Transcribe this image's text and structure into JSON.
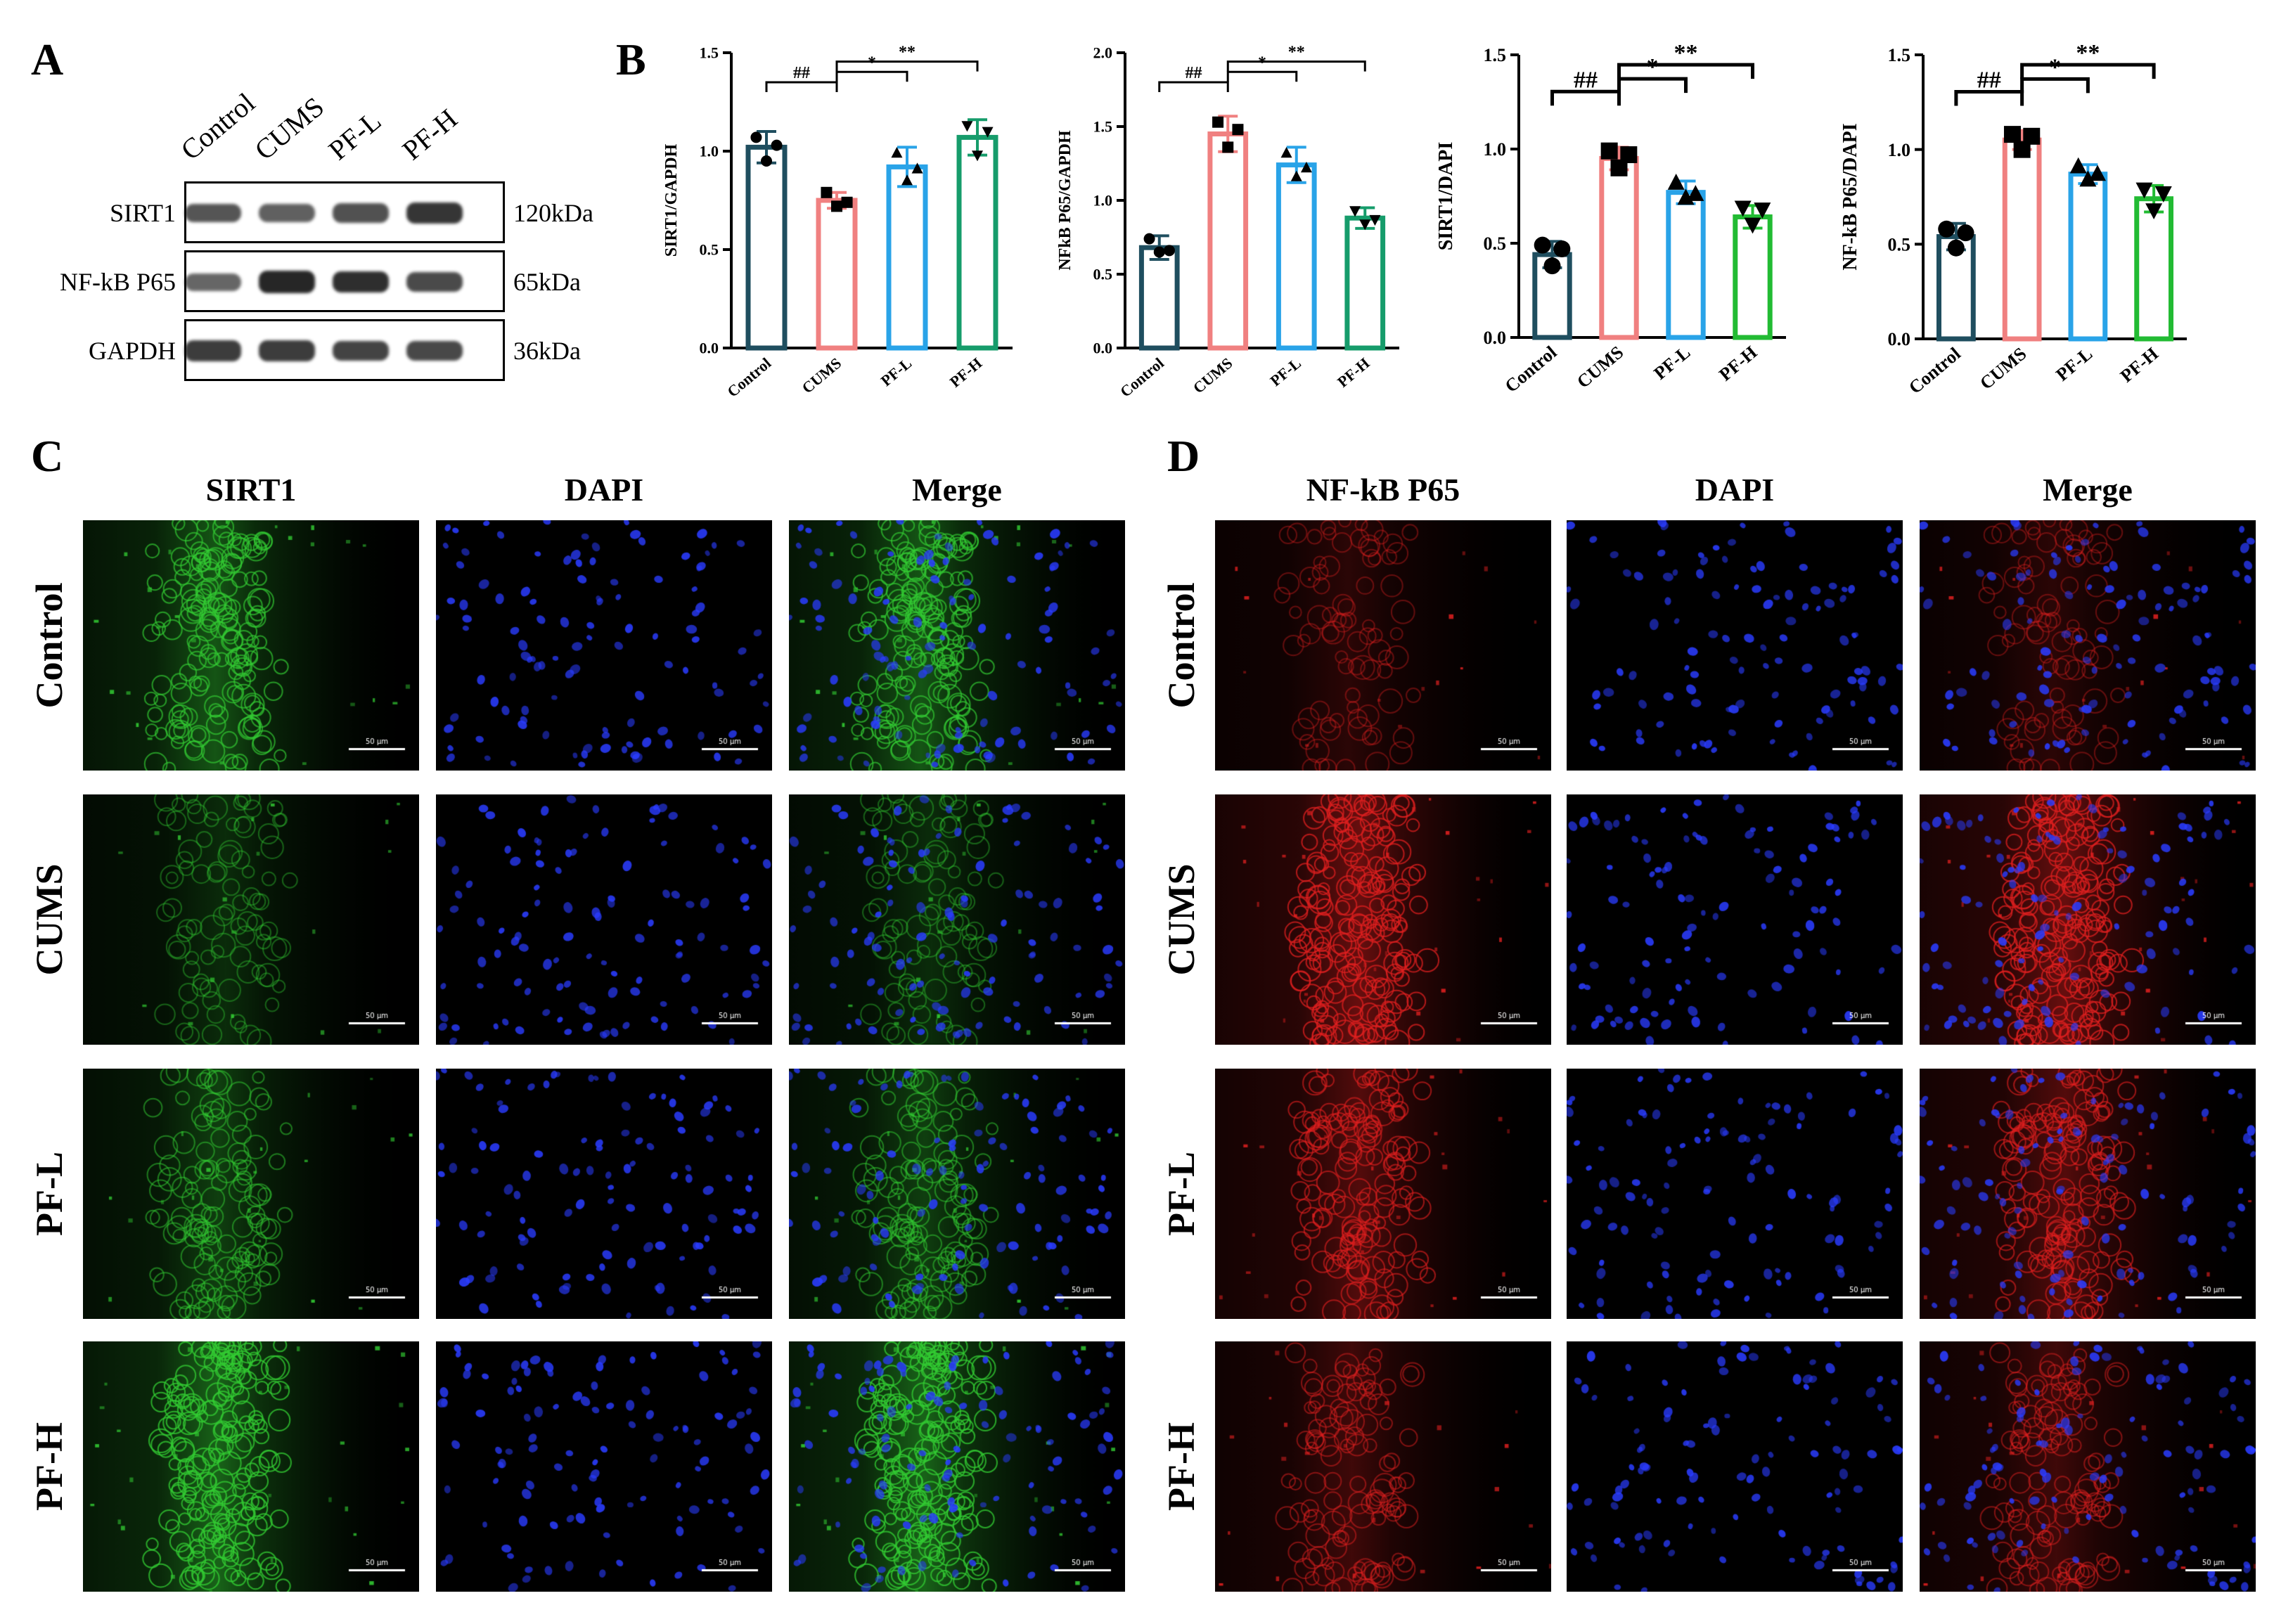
{
  "panel_a": {
    "letter": "A",
    "lanes": [
      "Control",
      "CUMS",
      "PF-L",
      "PF-H"
    ],
    "rows": [
      {
        "label": "SIRT1",
        "size": "120kDa",
        "intensity": [
          0.62,
          0.55,
          0.65,
          0.85
        ]
      },
      {
        "label": "NF-kB P65",
        "size": "65kDa",
        "intensity": [
          0.5,
          0.95,
          0.9,
          0.7
        ]
      },
      {
        "label": "GAPDH",
        "size": "36kDa",
        "intensity": [
          0.8,
          0.8,
          0.75,
          0.72
        ]
      }
    ]
  },
  "panel_b": {
    "letter": "B"
  },
  "chart_data": [
    {
      "type": "bar",
      "categories": [
        "Control",
        "CUMS",
        "PF-L",
        "PF-H"
      ],
      "ylabel": "SIRT1/GAPDH",
      "ylim": [
        0,
        1.5
      ],
      "yticks": [
        "0.0",
        "0.5",
        "1.0",
        "1.5"
      ],
      "values": [
        1.02,
        0.75,
        0.92,
        1.07
      ],
      "errors": [
        0.08,
        0.04,
        0.1,
        0.09
      ],
      "points": [
        [
          1.07,
          0.95,
          1.03
        ],
        [
          0.79,
          0.72,
          0.74
        ],
        [
          0.99,
          0.85,
          0.91
        ],
        [
          1.13,
          0.98,
          1.1
        ]
      ],
      "colors": [
        "#1f4e5f",
        "#f08080",
        "#29a3e8",
        "#169c6b"
      ],
      "markers": [
        "circle",
        "square",
        "triangle",
        "triangle-down"
      ],
      "significance": [
        {
          "from": 0,
          "to": 1,
          "label": "##"
        },
        {
          "from": 1,
          "to": 2,
          "label": "*"
        },
        {
          "from": 1,
          "to": 3,
          "label": "**"
        }
      ]
    },
    {
      "type": "bar",
      "categories": [
        "Control",
        "CUMS",
        "PF-L",
        "PF-H"
      ],
      "ylabel": "NFkB P65/GAPDH",
      "ylim": [
        0,
        2.0
      ],
      "yticks": [
        "0.0",
        "0.5",
        "1.0",
        "1.5",
        "2.0"
      ],
      "values": [
        0.68,
        1.45,
        1.24,
        0.88
      ],
      "errors": [
        0.08,
        0.12,
        0.12,
        0.07
      ],
      "points": [
        [
          0.74,
          0.65,
          0.66
        ],
        [
          1.53,
          1.36,
          1.48
        ],
        [
          1.32,
          1.16,
          1.22
        ],
        [
          0.93,
          0.84,
          0.87
        ]
      ],
      "colors": [
        "#1f4e5f",
        "#f08080",
        "#29a3e8",
        "#169c6b"
      ],
      "markers": [
        "circle",
        "square",
        "triangle",
        "triangle-down"
      ],
      "significance": [
        {
          "from": 0,
          "to": 1,
          "label": "##"
        },
        {
          "from": 1,
          "to": 2,
          "label": "*"
        },
        {
          "from": 1,
          "to": 3,
          "label": "**"
        }
      ]
    },
    {
      "type": "bar",
      "categories": [
        "Control",
        "CUMS",
        "PF-L",
        "PF-H"
      ],
      "ylabel": "SIRT1/DAPI",
      "ylim": [
        0,
        1.5
      ],
      "yticks": [
        "0.0",
        "0.5",
        "1.0",
        "1.5"
      ],
      "values": [
        0.44,
        0.95,
        0.77,
        0.64
      ],
      "errors": [
        0.07,
        0.06,
        0.06,
        0.06
      ],
      "points": [
        [
          0.49,
          0.38,
          0.47
        ],
        [
          0.99,
          0.9,
          0.97
        ],
        [
          0.82,
          0.74,
          0.76
        ],
        [
          0.69,
          0.6,
          0.68
        ]
      ],
      "colors": [
        "#1f4e5f",
        "#f08080",
        "#29a3e8",
        "#22bb33"
      ],
      "markers": [
        "circle",
        "square",
        "triangle",
        "triangle-down"
      ],
      "significance": [
        {
          "from": 0,
          "to": 1,
          "label": "##"
        },
        {
          "from": 1,
          "to": 2,
          "label": "*"
        },
        {
          "from": 1,
          "to": 3,
          "label": "**"
        }
      ]
    },
    {
      "type": "bar",
      "categories": [
        "Control",
        "CUMS",
        "PF-L",
        "PF-H"
      ],
      "ylabel": "NF-kB P65/DAPI",
      "ylim": [
        0,
        1.5
      ],
      "yticks": [
        "0.0",
        "0.5",
        "1.0",
        "1.5"
      ],
      "values": [
        0.54,
        1.05,
        0.87,
        0.74
      ],
      "errors": [
        0.07,
        0.05,
        0.05,
        0.07
      ],
      "points": [
        [
          0.58,
          0.48,
          0.56
        ],
        [
          1.08,
          1.0,
          1.07
        ],
        [
          0.91,
          0.84,
          0.87
        ],
        [
          0.79,
          0.68,
          0.77
        ]
      ],
      "colors": [
        "#1f4e5f",
        "#f08080",
        "#29a3e8",
        "#22bb33"
      ],
      "markers": [
        "circle",
        "square",
        "triangle",
        "triangle-down"
      ],
      "significance": [
        {
          "from": 0,
          "to": 1,
          "label": "##"
        },
        {
          "from": 1,
          "to": 2,
          "label": "*"
        },
        {
          "from": 1,
          "to": 3,
          "label": "**"
        }
      ]
    }
  ],
  "panel_c": {
    "letter": "C",
    "columns": [
      "SIRT1",
      "DAPI",
      "Merge"
    ],
    "rows": [
      "Control",
      "CUMS",
      "PF-L",
      "PF-H"
    ],
    "signal_color": "#33cc33",
    "signal_level": [
      0.75,
      0.3,
      0.5,
      0.9
    ]
  },
  "panel_d": {
    "letter": "D",
    "columns": [
      "NF-kB P65",
      "DAPI",
      "Merge"
    ],
    "rows": [
      "Control",
      "CUMS",
      "PF-L",
      "PF-H"
    ],
    "signal_color": "#e02020",
    "signal_level": [
      0.25,
      0.85,
      0.65,
      0.45
    ]
  },
  "dapi_color": "#2a3cff",
  "scale_bar_label": "50 μm"
}
